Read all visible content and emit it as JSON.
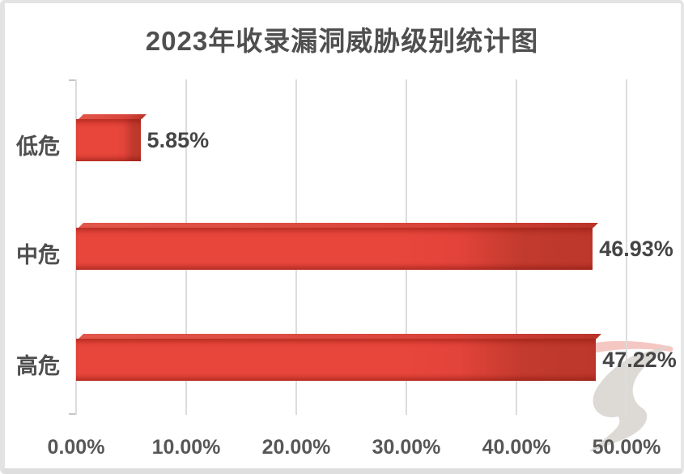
{
  "title": "2023年收录漏洞威胁级别统计图",
  "chart_data": {
    "type": "bar",
    "orientation": "horizontal",
    "title": "2023年收录漏洞威胁级别统计图",
    "categories": [
      "低危",
      "中危",
      "高危"
    ],
    "values": [
      5.85,
      46.93,
      47.22
    ],
    "value_labels": [
      "5.85%",
      "46.93%",
      "47.22%"
    ],
    "x_ticks": [
      "0.00%",
      "10.00%",
      "20.00%",
      "30.00%",
      "40.00%",
      "50.00%"
    ],
    "x_tick_values": [
      0,
      10,
      20,
      30,
      40,
      50
    ],
    "xlim": [
      0,
      50
    ],
    "xlabel": "",
    "ylabel": "",
    "grid": true,
    "legend": false,
    "bar_color": "#e8463b",
    "bar_shade_color": "#bd372b",
    "gridline_color": "#dcdcdc",
    "text_color": "#4f4f4f"
  },
  "watermark": {
    "name": "swoosh-logo"
  }
}
